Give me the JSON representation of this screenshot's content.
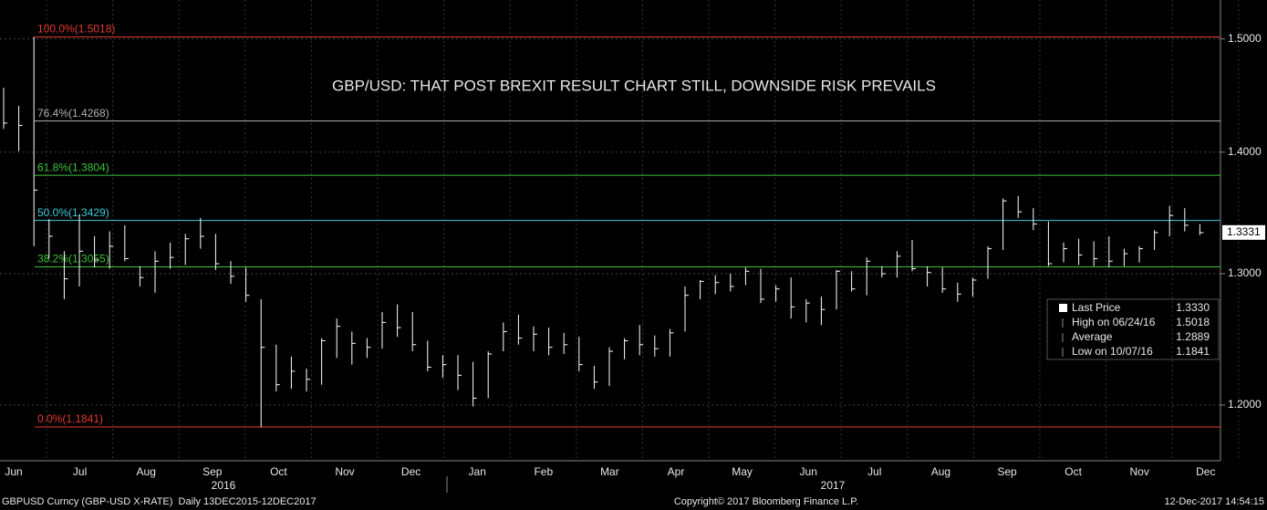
{
  "chart_data": {
    "type": "ohlc",
    "title": "GBP/USD: THAT POST BREXIT RESULT CHART STILL, DOWNSIDE RISK PREVAILS",
    "series": [
      {
        "name": "Last Price",
        "color": "#ffffff",
        "high": [
          1.456,
          1.44,
          1.502,
          1.344,
          1.318,
          1.348,
          1.33,
          1.334,
          1.339,
          1.306,
          1.318,
          1.325,
          1.332,
          1.345,
          1.332,
          1.31,
          1.305,
          1.28,
          1.245,
          1.236,
          1.227,
          1.25,
          1.265,
          1.255,
          1.25,
          1.27,
          1.276,
          1.27,
          1.248,
          1.237,
          1.237,
          1.232,
          1.24,
          1.262,
          1.268,
          1.259,
          1.258,
          1.254,
          1.251,
          1.229,
          1.243,
          1.25,
          1.26,
          1.252,
          1.257,
          1.29,
          1.295,
          1.299,
          1.3,
          1.305,
          1.304,
          1.291,
          1.297,
          1.28,
          1.282,
          1.303,
          1.302,
          1.313,
          1.306,
          1.318,
          1.327,
          1.306,
          1.305,
          1.293,
          1.297,
          1.322,
          1.361,
          1.363,
          1.353,
          1.342,
          1.325,
          1.328,
          1.326,
          1.33,
          1.32,
          1.322,
          1.335,
          1.355,
          1.353,
          1.34
        ],
        "low": [
          1.42,
          1.401,
          1.322,
          1.312,
          1.28,
          1.29,
          1.305,
          1.304,
          1.31,
          1.29,
          1.285,
          1.304,
          1.307,
          1.32,
          1.303,
          1.292,
          1.278,
          1.184,
          1.21,
          1.212,
          1.21,
          1.215,
          1.235,
          1.23,
          1.235,
          1.242,
          1.251,
          1.24,
          1.225,
          1.22,
          1.211,
          1.199,
          1.205,
          1.24,
          1.245,
          1.24,
          1.237,
          1.238,
          1.225,
          1.212,
          1.214,
          1.234,
          1.237,
          1.236,
          1.236,
          1.255,
          1.28,
          1.284,
          1.286,
          1.291,
          1.277,
          1.278,
          1.265,
          1.262,
          1.26,
          1.272,
          1.286,
          1.283,
          1.297,
          1.297,
          1.302,
          1.29,
          1.285,
          1.278,
          1.282,
          1.296,
          1.319,
          1.345,
          1.335,
          1.306,
          1.309,
          1.307,
          1.306,
          1.305,
          1.306,
          1.309,
          1.319,
          1.33,
          1.334,
          1.331
        ],
        "close": [
          1.425,
          1.423,
          1.368,
          1.33,
          1.296,
          1.318,
          1.311,
          1.322,
          1.312,
          1.297,
          1.31,
          1.313,
          1.328,
          1.33,
          1.308,
          1.298,
          1.283,
          1.243,
          1.215,
          1.225,
          1.219,
          1.248,
          1.259,
          1.246,
          1.243,
          1.262,
          1.258,
          1.245,
          1.228,
          1.23,
          1.222,
          1.205,
          1.238,
          1.255,
          1.25,
          1.253,
          1.243,
          1.245,
          1.23,
          1.217,
          1.24,
          1.248,
          1.245,
          1.242,
          1.254,
          1.283,
          1.294,
          1.293,
          1.29,
          1.302,
          1.28,
          1.288,
          1.274,
          1.277,
          1.272,
          1.302,
          1.288,
          1.31,
          1.3,
          1.314,
          1.304,
          1.301,
          1.288,
          1.284,
          1.295,
          1.32,
          1.359,
          1.35,
          1.34,
          1.308,
          1.32,
          1.315,
          1.312,
          1.31,
          1.316,
          1.32,
          1.333,
          1.347,
          1.339,
          1.333
        ]
      }
    ],
    "ylim": [
      1.16,
      1.536
    ],
    "log_scale": true,
    "yticks": [
      {
        "value": 1.2,
        "label": "1.2000"
      },
      {
        "value": 1.3,
        "label": "1.3000"
      },
      {
        "value": 1.4,
        "label": "1.4000"
      },
      {
        "value": 1.5,
        "label": "1.5000"
      }
    ],
    "grid": true,
    "last_price_tag": {
      "value": 1.3331,
      "label": "1.3331"
    },
    "fib_levels": [
      {
        "label": "100.0%(1.5018)",
        "value": 1.5018,
        "color": "#e53a32"
      },
      {
        "label": "76.4%(1.4268)",
        "value": 1.4268,
        "color": "#b0b0b0"
      },
      {
        "label": "61.8%(1.3804)",
        "value": 1.3804,
        "color": "#3cc43c"
      },
      {
        "label": "50.0%(1.3429)",
        "value": 1.3429,
        "color": "#3ccbd8"
      },
      {
        "label": "38.2%(1.3055)",
        "value": 1.3055,
        "color": "#3cc43c"
      },
      {
        "label": "0.0%(1.1841)",
        "value": 1.1841,
        "color": "#e53a32"
      }
    ],
    "months": [
      "Jun",
      "Jul",
      "Aug",
      "Sep",
      "Oct",
      "Nov",
      "Dec",
      "Jan",
      "Feb",
      "Mar",
      "Apr",
      "May",
      "Jun",
      "Jul",
      "Aug",
      "Sep",
      "Oct",
      "Nov",
      "Dec"
    ],
    "years": [
      "2016",
      "2017"
    ],
    "legend": [
      {
        "label": "Last Price",
        "value": "1.3330"
      },
      {
        "label": "High on 06/24/16",
        "value": "1.5018"
      },
      {
        "label": "Average",
        "value": "1.2889"
      },
      {
        "label": "Low on 10/07/16",
        "value": "1.1841"
      }
    ],
    "footer": {
      "left": "GBPUSD Curncy (GBP-USD X-RATE)  Daily 13DEC2015-12DEC2017",
      "center": "Copyright© 2017 Bloomberg Finance L.P.",
      "right": "12-Dec-2017 14:54:15"
    }
  }
}
